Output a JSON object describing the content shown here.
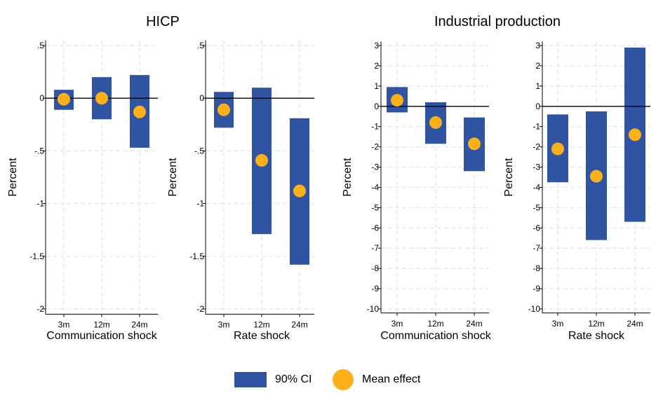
{
  "colors": {
    "ci": "#3054a4",
    "mean": "#fbb117",
    "grid": "#e4e4e4",
    "zero": "#000000"
  },
  "group_titles": [
    "HICP",
    "Industrial production"
  ],
  "legend": {
    "ci_label": "90% CI",
    "mean_label": "Mean effect"
  },
  "chart_data": [
    {
      "type": "bar",
      "group": "HICP",
      "xlabel": "Communication shock",
      "ylabel": "Percent",
      "categories": [
        "3m",
        "12m",
        "24m"
      ],
      "yticks": [
        0.5,
        0,
        -0.5,
        -1,
        -1.5,
        -2
      ],
      "ytick_labels": [
        ".5",
        "0",
        "-.5",
        "-1",
        "-1.5",
        "-2"
      ],
      "ylim": [
        -2.05,
        0.55
      ],
      "series": [
        {
          "name": "90% CI",
          "low": [
            -0.11,
            -0.2,
            -0.47
          ],
          "high": [
            0.08,
            0.2,
            0.22
          ]
        },
        {
          "name": "Mean effect",
          "values": [
            -0.01,
            0.0,
            -0.13
          ]
        }
      ]
    },
    {
      "type": "bar",
      "group": "HICP",
      "xlabel": "Rate shock",
      "ylabel": "Percent",
      "categories": [
        "3m",
        "12m",
        "24m"
      ],
      "yticks": [
        0.5,
        0,
        -0.5,
        -1,
        -1.5,
        -2
      ],
      "ytick_labels": [
        ".5",
        "0",
        "-.5",
        "-1",
        "-1.5",
        "-2"
      ],
      "ylim": [
        -2.05,
        0.55
      ],
      "series": [
        {
          "name": "90% CI",
          "low": [
            -0.28,
            -1.29,
            -1.58
          ],
          "high": [
            0.06,
            0.1,
            -0.19
          ]
        },
        {
          "name": "Mean effect",
          "values": [
            -0.11,
            -0.59,
            -0.88
          ]
        }
      ]
    },
    {
      "type": "bar",
      "group": "Industrial production",
      "xlabel": "Communication shock",
      "ylabel": "Percent",
      "categories": [
        "3m",
        "12m",
        "24m"
      ],
      "yticks": [
        3,
        2,
        1,
        0,
        -1,
        -2,
        -3,
        -4,
        -5,
        -6,
        -7,
        -8,
        -9,
        -10
      ],
      "ytick_labels": [
        "3",
        "2",
        "1",
        "0",
        "-1",
        "-2",
        "-3",
        "-4",
        "-5",
        "-6",
        "-7",
        "-8",
        "-9",
        "-10"
      ],
      "ylim": [
        -10.2,
        3.2
      ],
      "series": [
        {
          "name": "90% CI",
          "low": [
            -0.3,
            -1.85,
            -3.2
          ],
          "high": [
            0.95,
            0.2,
            -0.55
          ]
        },
        {
          "name": "Mean effect",
          "values": [
            0.3,
            -0.8,
            -1.85
          ]
        }
      ]
    },
    {
      "type": "bar",
      "group": "Industrial production",
      "xlabel": "Rate shock",
      "ylabel": "Percent",
      "categories": [
        "3m",
        "12m",
        "24m"
      ],
      "yticks": [
        3,
        2,
        1,
        0,
        -1,
        -2,
        -3,
        -4,
        -5,
        -6,
        -7,
        -8,
        -9,
        -10
      ],
      "ytick_labels": [
        "3",
        "2",
        "1",
        "0",
        "-1",
        "-2",
        "-3",
        "-4",
        "-5",
        "-6",
        "-7",
        "-8",
        "-9",
        "-10"
      ],
      "ylim": [
        -10.2,
        3.2
      ],
      "series": [
        {
          "name": "90% CI",
          "low": [
            -3.75,
            -6.6,
            -5.7
          ],
          "high": [
            -0.4,
            -0.25,
            2.9
          ]
        },
        {
          "name": "Mean effect",
          "values": [
            -2.1,
            -3.45,
            -1.4
          ]
        }
      ]
    }
  ]
}
